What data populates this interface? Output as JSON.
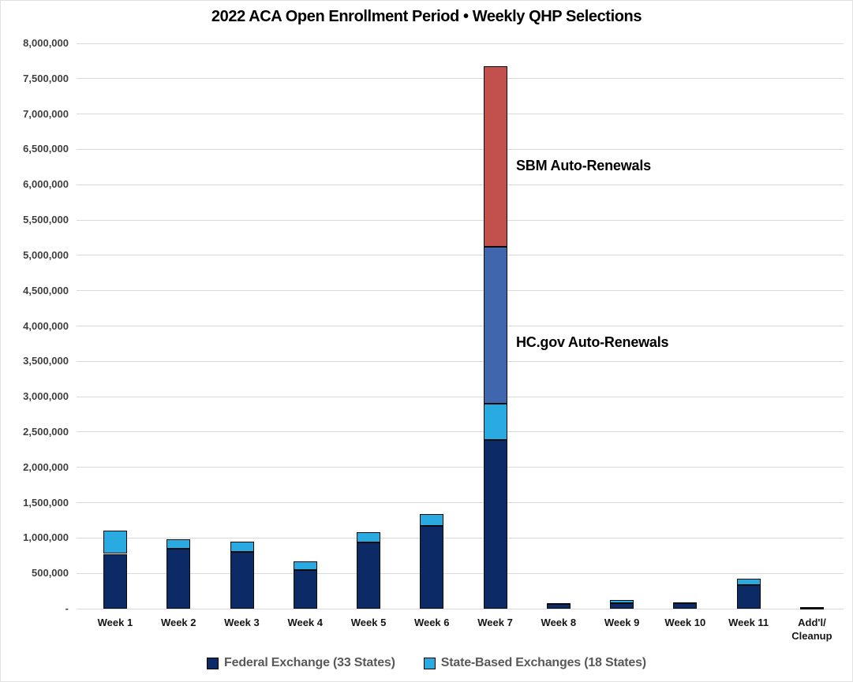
{
  "title": "2022 ACA Open Enrollment Period • Weekly QHP Selections",
  "chart_data": {
    "type": "bar",
    "stacked": true,
    "title": "2022 ACA Open Enrollment Period • Weekly QHP Selections",
    "categories": [
      "Week 1",
      "Week 2",
      "Week 3",
      "Week 4",
      "Week 5",
      "Week 6",
      "Week 7",
      "Week 8",
      "Week 9",
      "Week 10",
      "Week 11",
      "Add'l/\nCleanup"
    ],
    "series": [
      {
        "key": "federal",
        "name": "Federal Exchange (33 States)",
        "color": "#0b2a66",
        "in_legend": true,
        "values": [
          775000,
          845000,
          800000,
          545000,
          940000,
          1175000,
          2390000,
          65000,
          80000,
          75000,
          335000,
          15000
        ]
      },
      {
        "key": "state",
        "name": "State-Based Exchanges (18 States)",
        "color": "#29abe2",
        "in_legend": true,
        "values": [
          325000,
          135000,
          150000,
          120000,
          140000,
          165000,
          515000,
          15000,
          40000,
          10000,
          85000,
          10000
        ]
      },
      {
        "key": "hcgov_auto",
        "name": "HC.gov Auto-Renewals",
        "color": "#4067ad",
        "in_legend": false,
        "values": [
          0,
          0,
          0,
          0,
          0,
          0,
          2215000,
          0,
          0,
          0,
          0,
          0
        ]
      },
      {
        "key": "sbm_auto",
        "name": "SBM Auto-Renewals",
        "color": "#c2504c",
        "in_legend": false,
        "values": [
          0,
          0,
          0,
          0,
          0,
          0,
          2555000,
          0,
          0,
          0,
          0,
          0
        ]
      }
    ],
    "ylim": [
      0,
      8000000
    ],
    "ytick_step": 500000,
    "ytick_labels": [
      "-",
      "500,000",
      "1,000,000",
      "1,500,000",
      "2,000,000",
      "2,500,000",
      "3,000,000",
      "3,500,000",
      "4,000,000",
      "4,500,000",
      "5,000,000",
      "5,500,000",
      "6,000,000",
      "6,500,000",
      "7,000,000",
      "7,500,000",
      "8,000,000"
    ],
    "grid": true,
    "legend_position": "bottom",
    "annotations": [
      {
        "text": "SBM Auto-Renewals",
        "x": 653,
        "y": 199
      },
      {
        "text": "HC.gov Auto-Renewals",
        "x": 653,
        "y": 423
      }
    ],
    "colors": {
      "gridline": "#d9d9d9",
      "ytick_text": "#404040",
      "xtick_text": "#141414",
      "legend_text": "#595959",
      "bar_border": "#0b0b0b"
    }
  }
}
